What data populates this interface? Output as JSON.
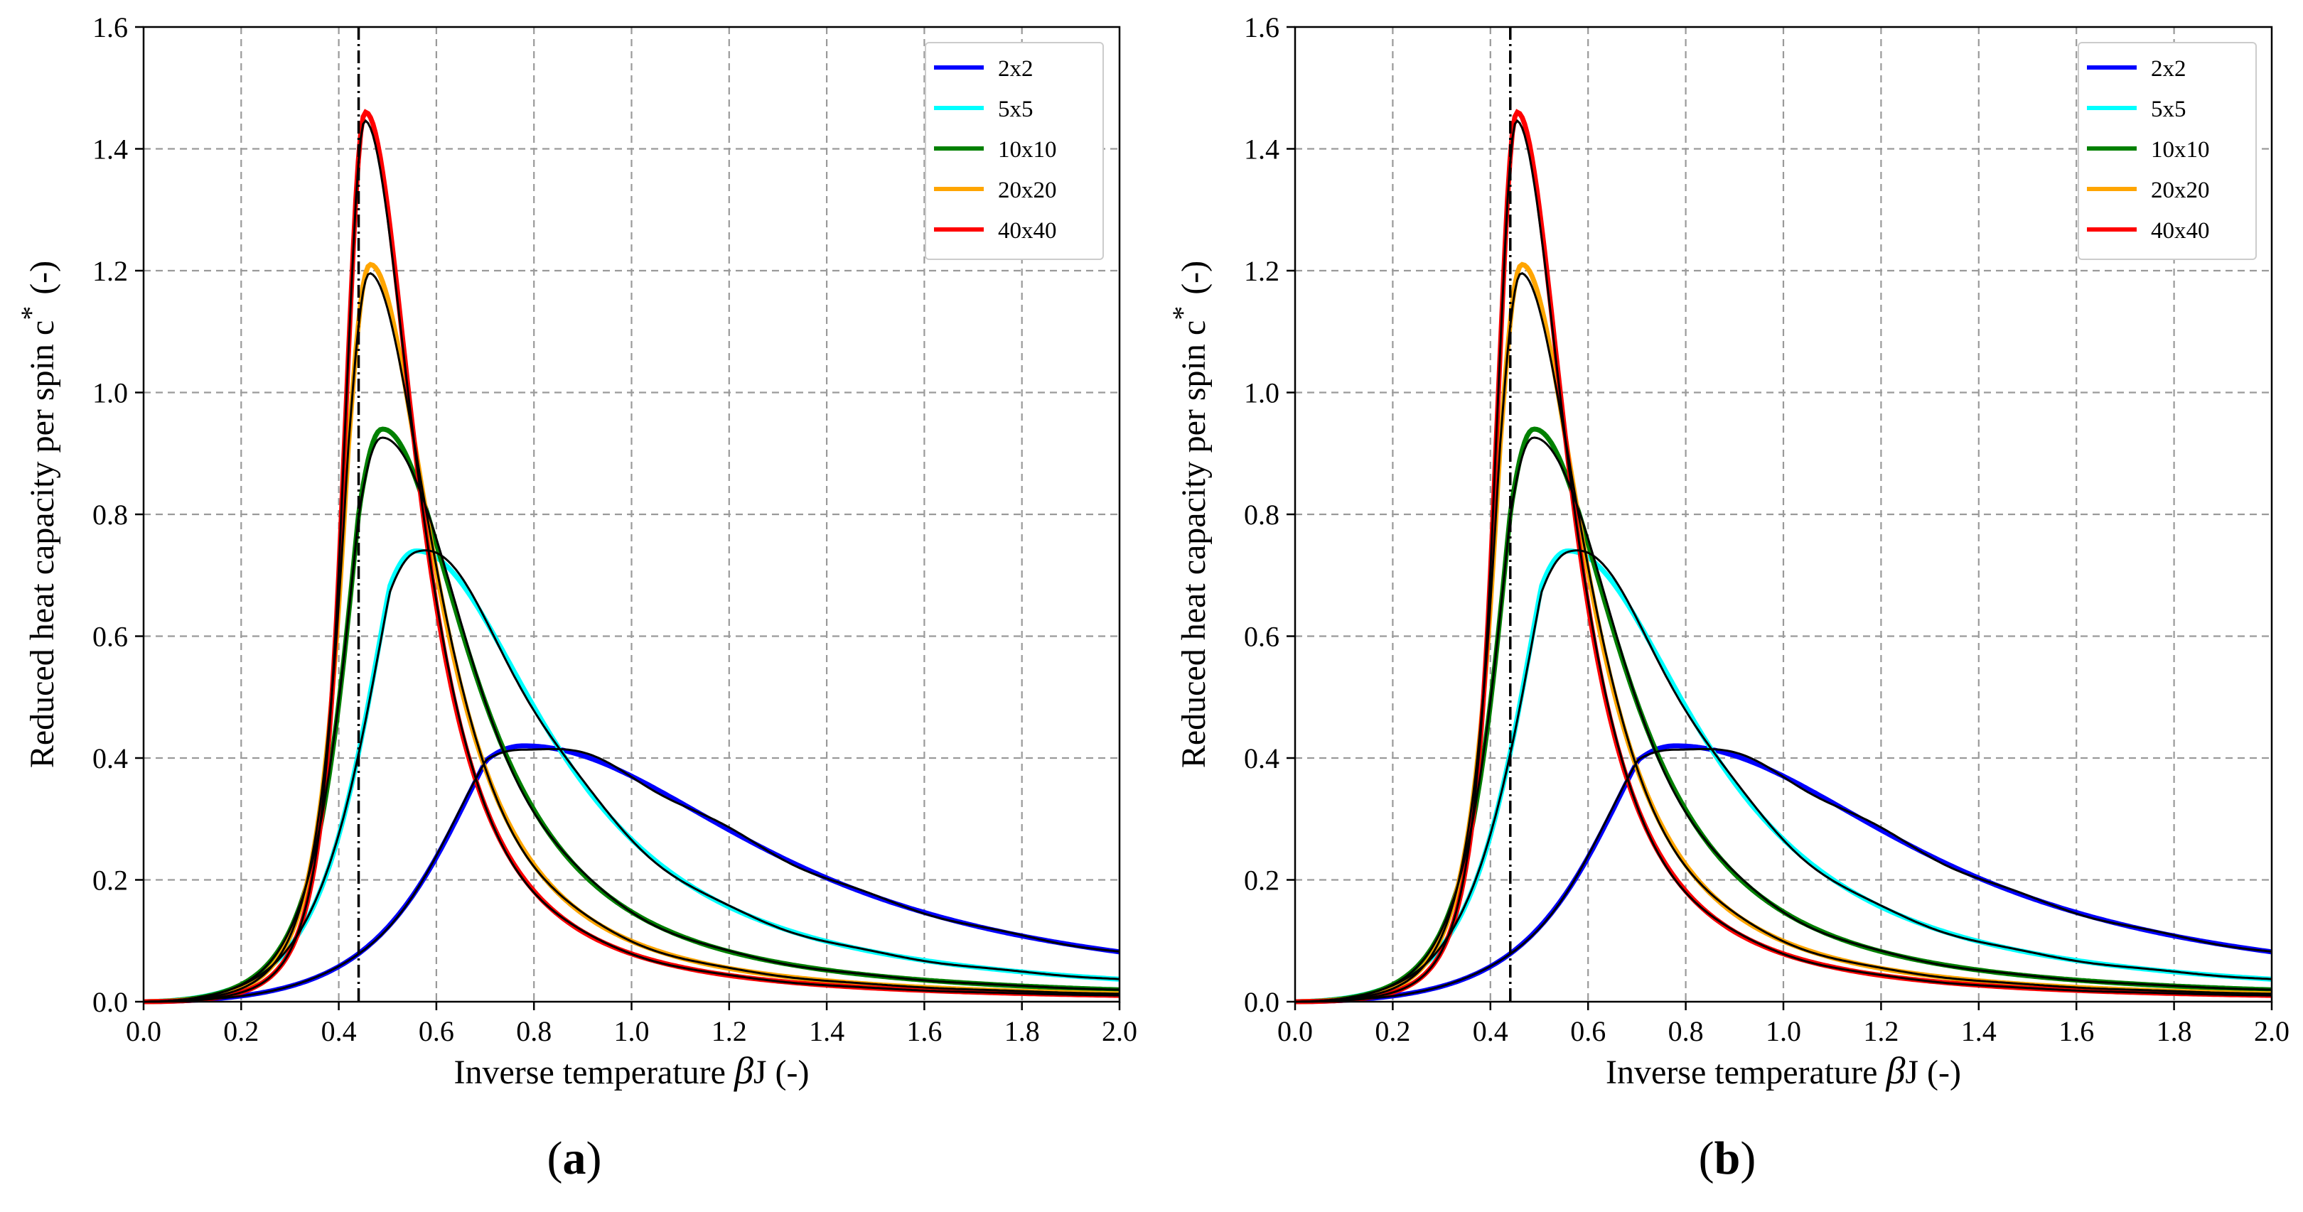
{
  "chart_data": [
    {
      "type": "line",
      "panel": "a",
      "caption_letter": "a",
      "caption_open": "(",
      "caption_close": ")",
      "xlabel_main": "Inverse temperature ",
      "xlabel_beta": "β",
      "xlabel_tail": "J (-)",
      "ylabel_main": "Reduced heat capacity per spin c",
      "ylabel_sup": "*",
      "ylabel_tail": "(-)",
      "xlim": [
        0.0,
        2.0
      ],
      "ylim": [
        0.0,
        1.6
      ],
      "xticks": [
        "0.0",
        "0.2",
        "0.4",
        "0.6",
        "0.8",
        "1.0",
        "1.2",
        "1.4",
        "1.6",
        "1.8",
        "2.0"
      ],
      "yticks": [
        "0.0",
        "0.2",
        "0.4",
        "0.6",
        "0.8",
        "1.0",
        "1.2",
        "1.4",
        "1.6"
      ],
      "grid": true,
      "legend_position": "top-right",
      "critical_line_x": 0.4407,
      "series": [
        {
          "name": "2x2",
          "color": "#0000ff",
          "peak_x": 0.78,
          "peak_y": 0.42
        },
        {
          "name": "5x5",
          "color": "#00ffff",
          "peak_x": 0.56,
          "peak_y": 0.74
        },
        {
          "name": "10x10",
          "color": "#008000",
          "peak_x": 0.49,
          "peak_y": 0.94
        },
        {
          "name": "20x20",
          "color": "#ffa500",
          "peak_x": 0.465,
          "peak_y": 1.21
        },
        {
          "name": "40x40",
          "color": "#ff0000",
          "peak_x": 0.455,
          "peak_y": 1.46
        }
      ],
      "overlay_color": "#000000"
    },
    {
      "type": "line",
      "panel": "b",
      "caption_letter": "b",
      "caption_open": "(",
      "caption_close": ")",
      "xlabel_main": "Inverse temperature ",
      "xlabel_beta": "β",
      "xlabel_tail": "J (-)",
      "ylabel_main": "Reduced heat capacity per spin c",
      "ylabel_sup": "*",
      "ylabel_tail": "(-)",
      "xlim": [
        0.0,
        2.0
      ],
      "ylim": [
        0.0,
        1.6
      ],
      "xticks": [
        "0.0",
        "0.2",
        "0.4",
        "0.6",
        "0.8",
        "1.0",
        "1.2",
        "1.4",
        "1.6",
        "1.8",
        "2.0"
      ],
      "yticks": [
        "0.0",
        "0.2",
        "0.4",
        "0.6",
        "0.8",
        "1.0",
        "1.2",
        "1.4",
        "1.6"
      ],
      "grid": true,
      "legend_position": "top-right",
      "critical_line_x": 0.4407,
      "series": [
        {
          "name": "2x2",
          "color": "#0000ff",
          "peak_x": 0.78,
          "peak_y": 0.42
        },
        {
          "name": "5x5",
          "color": "#00ffff",
          "peak_x": 0.56,
          "peak_y": 0.74
        },
        {
          "name": "10x10",
          "color": "#008000",
          "peak_x": 0.49,
          "peak_y": 0.94
        },
        {
          "name": "20x20",
          "color": "#ffa500",
          "peak_x": 0.465,
          "peak_y": 1.21
        },
        {
          "name": "40x40",
          "color": "#ff0000",
          "peak_x": 0.455,
          "peak_y": 1.46
        }
      ],
      "overlay_color": "#000000"
    }
  ]
}
